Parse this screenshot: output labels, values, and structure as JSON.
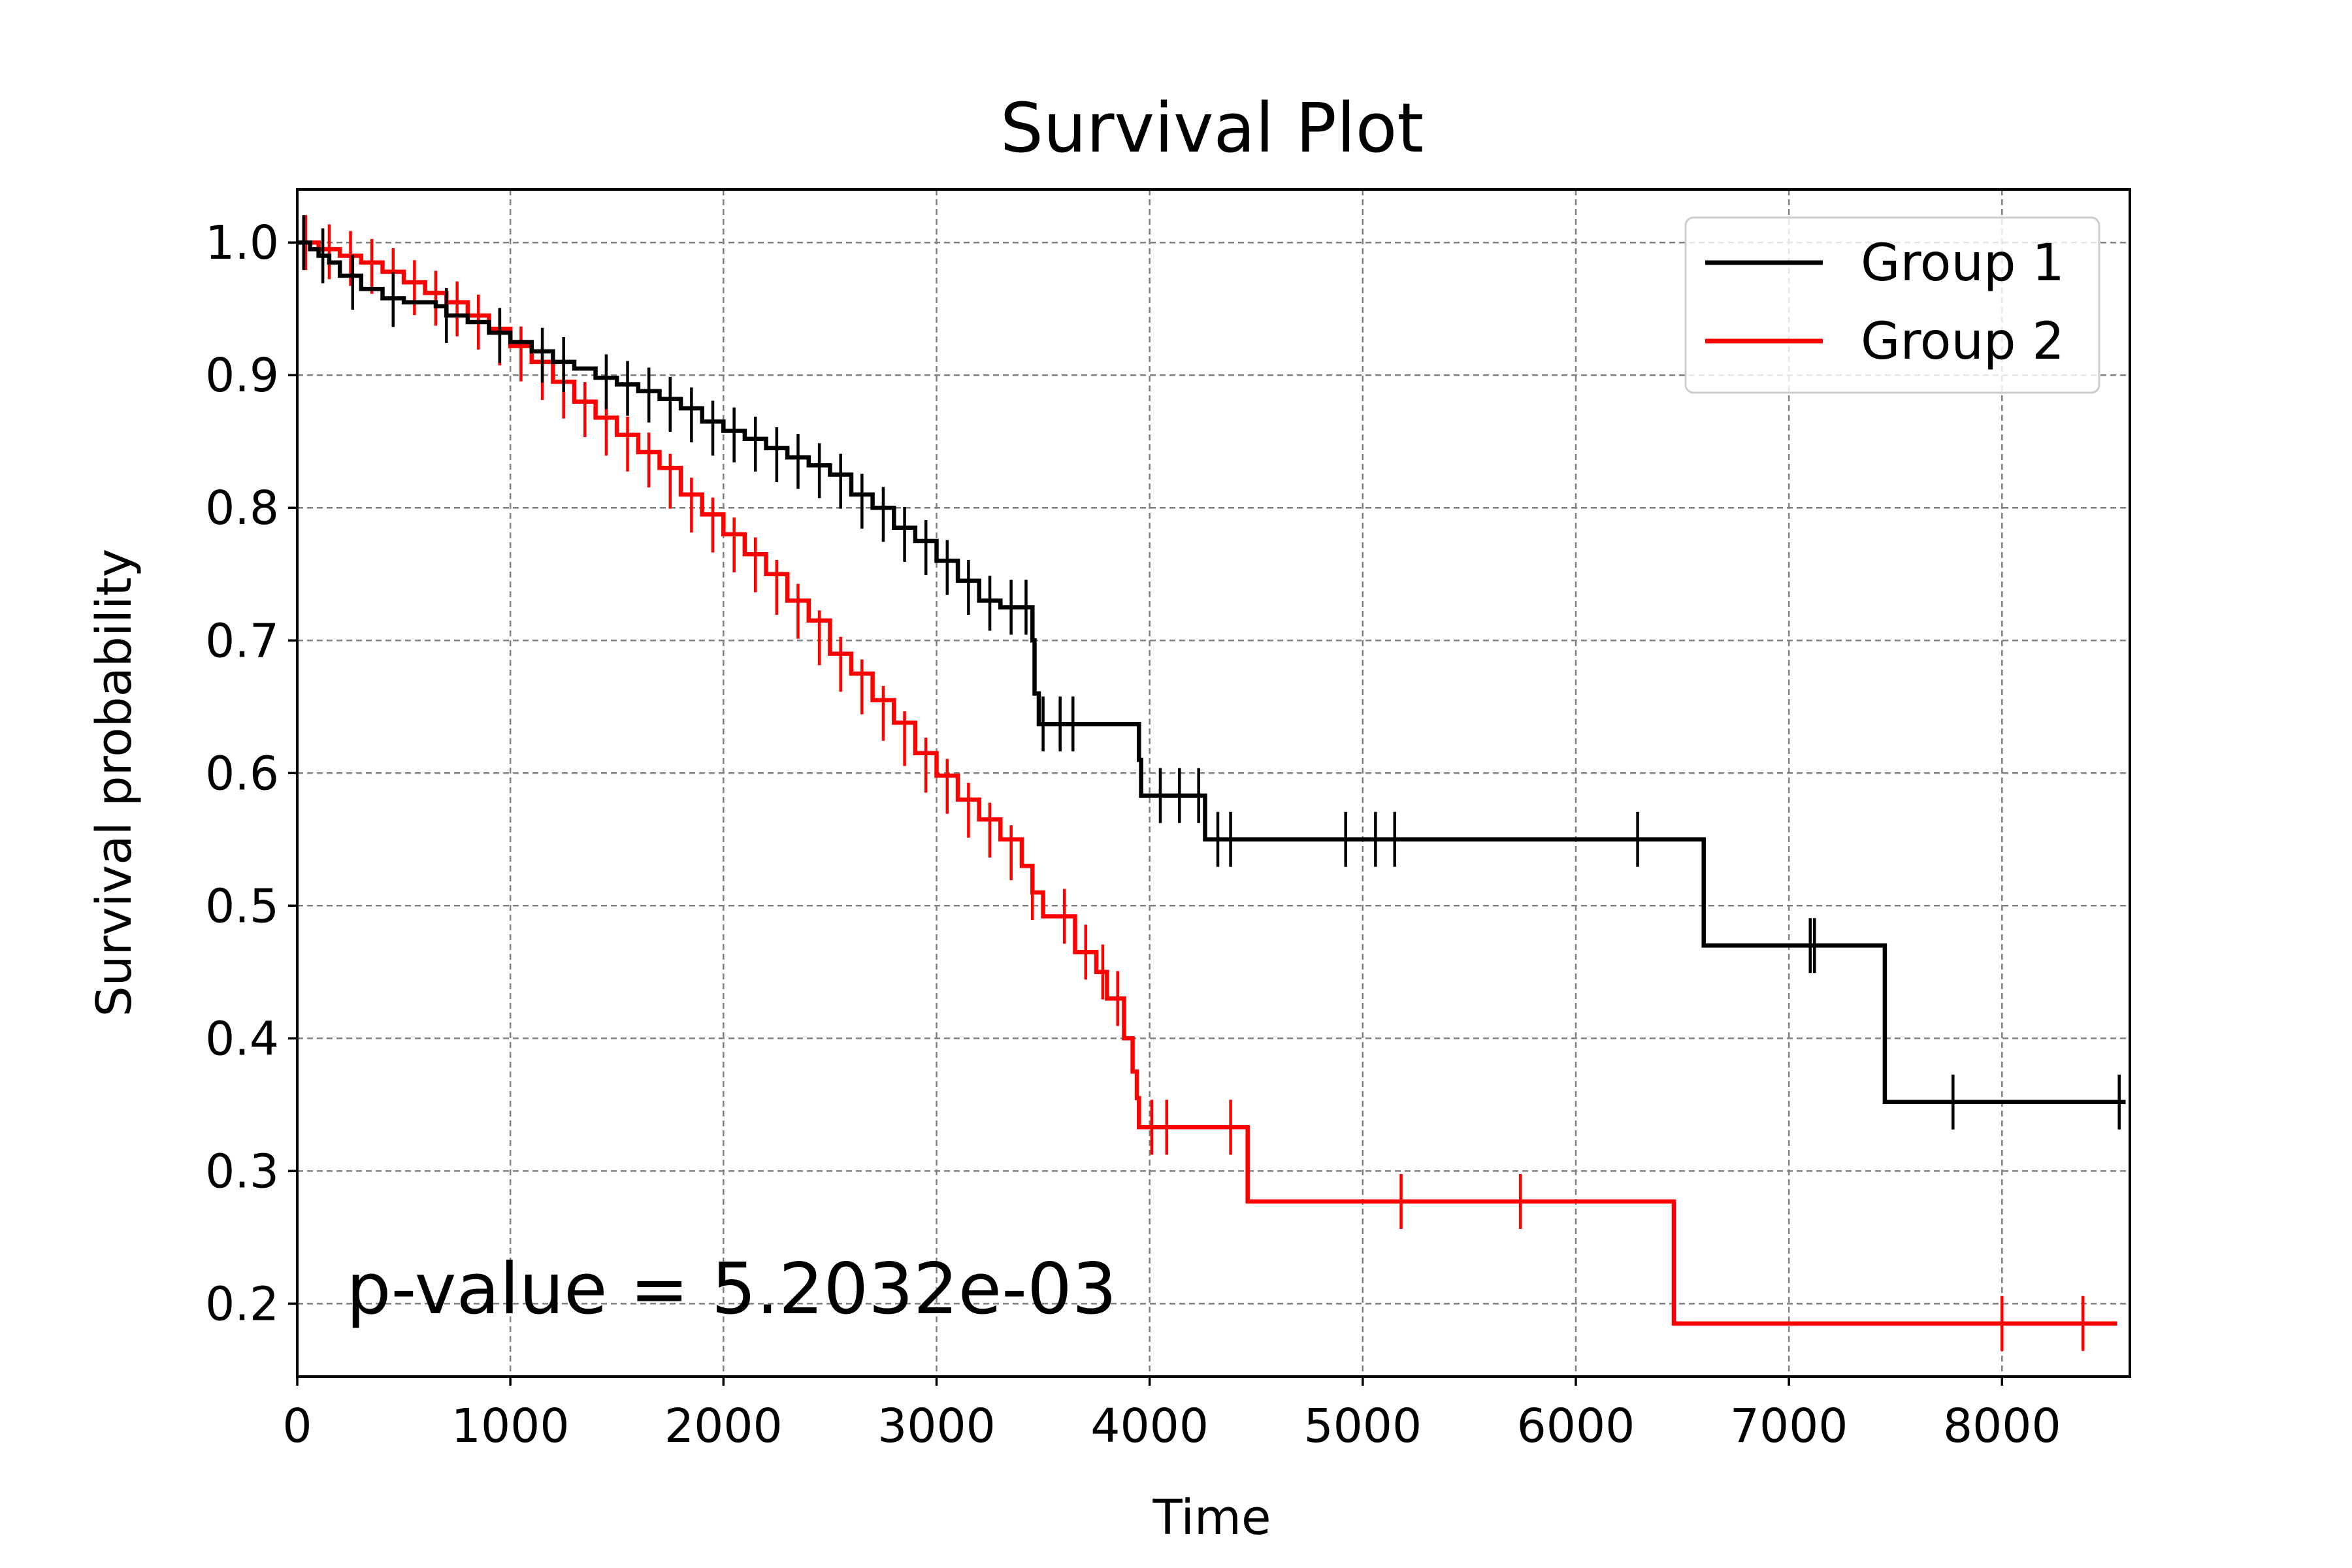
{
  "chart_data": {
    "type": "line",
    "title": "Survival Plot",
    "xlabel": "Time",
    "ylabel": "Survival probability",
    "xlim": [
      0,
      8600
    ],
    "ylim": [
      0.145,
      1.04
    ],
    "xticks": [
      0,
      1000,
      2000,
      3000,
      4000,
      5000,
      6000,
      7000,
      8000
    ],
    "yticks": [
      0.2,
      0.3,
      0.4,
      0.5,
      0.6,
      0.7,
      0.8,
      0.9,
      1.0
    ],
    "xtick_labels": [
      "0",
      "1000",
      "2000",
      "3000",
      "4000",
      "5000",
      "6000",
      "7000",
      "8000"
    ],
    "ytick_labels": [
      "0.2",
      "0.3",
      "0.4",
      "0.5",
      "0.6",
      "0.7",
      "0.8",
      "0.9",
      "1.0"
    ],
    "grid": true,
    "legend_position": "top-right",
    "annotation": "p-value = 5.2032e-03",
    "series": [
      {
        "name": "Group 1",
        "color": "#000000",
        "steps": [
          [
            0,
            1.0
          ],
          [
            60,
            0.995
          ],
          [
            100,
            0.99
          ],
          [
            150,
            0.985
          ],
          [
            200,
            0.975
          ],
          [
            300,
            0.965
          ],
          [
            400,
            0.958
          ],
          [
            500,
            0.955
          ],
          [
            650,
            0.952
          ],
          [
            700,
            0.945
          ],
          [
            800,
            0.94
          ],
          [
            900,
            0.932
          ],
          [
            1000,
            0.925
          ],
          [
            1100,
            0.918
          ],
          [
            1200,
            0.91
          ],
          [
            1300,
            0.905
          ],
          [
            1400,
            0.898
          ],
          [
            1500,
            0.893
          ],
          [
            1600,
            0.888
          ],
          [
            1700,
            0.882
          ],
          [
            1800,
            0.875
          ],
          [
            1900,
            0.865
          ],
          [
            2000,
            0.858
          ],
          [
            2100,
            0.852
          ],
          [
            2200,
            0.845
          ],
          [
            2300,
            0.838
          ],
          [
            2400,
            0.832
          ],
          [
            2500,
            0.825
          ],
          [
            2600,
            0.81
          ],
          [
            2700,
            0.8
          ],
          [
            2800,
            0.785
          ],
          [
            2900,
            0.775
          ],
          [
            3000,
            0.76
          ],
          [
            3100,
            0.745
          ],
          [
            3200,
            0.73
          ],
          [
            3300,
            0.725
          ],
          [
            3450,
            0.7
          ],
          [
            3460,
            0.66
          ],
          [
            3480,
            0.637
          ],
          [
            3950,
            0.61
          ],
          [
            3960,
            0.583
          ],
          [
            4260,
            0.55
          ],
          [
            6600,
            0.47
          ],
          [
            7450,
            0.352
          ],
          [
            8580,
            0.352
          ]
        ],
        "censored": [
          [
            30,
            1.0
          ],
          [
            120,
            0.99
          ],
          [
            260,
            0.97
          ],
          [
            450,
            0.957
          ],
          [
            700,
            0.945
          ],
          [
            950,
            0.93
          ],
          [
            1150,
            0.915
          ],
          [
            1250,
            0.908
          ],
          [
            1450,
            0.895
          ],
          [
            1550,
            0.89
          ],
          [
            1650,
            0.885
          ],
          [
            1750,
            0.878
          ],
          [
            1850,
            0.87
          ],
          [
            1950,
            0.86
          ],
          [
            2050,
            0.855
          ],
          [
            2150,
            0.848
          ],
          [
            2250,
            0.84
          ],
          [
            2350,
            0.835
          ],
          [
            2450,
            0.828
          ],
          [
            2550,
            0.82
          ],
          [
            2650,
            0.805
          ],
          [
            2750,
            0.795
          ],
          [
            2850,
            0.78
          ],
          [
            2950,
            0.77
          ],
          [
            3050,
            0.755
          ],
          [
            3150,
            0.74
          ],
          [
            3250,
            0.728
          ],
          [
            3350,
            0.725
          ],
          [
            3420,
            0.725
          ],
          [
            3500,
            0.637
          ],
          [
            3580,
            0.637
          ],
          [
            3640,
            0.637
          ],
          [
            4050,
            0.583
          ],
          [
            4140,
            0.583
          ],
          [
            4230,
            0.583
          ],
          [
            4320,
            0.55
          ],
          [
            4380,
            0.55
          ],
          [
            4920,
            0.55
          ],
          [
            5060,
            0.55
          ],
          [
            5150,
            0.55
          ],
          [
            6290,
            0.55
          ],
          [
            7100,
            0.47
          ],
          [
            7120,
            0.47
          ],
          [
            7770,
            0.352
          ],
          [
            8550,
            0.352
          ]
        ]
      },
      {
        "name": "Group 2",
        "color": "#ff0000",
        "steps": [
          [
            0,
            1.0
          ],
          [
            100,
            0.995
          ],
          [
            200,
            0.99
          ],
          [
            300,
            0.985
          ],
          [
            400,
            0.978
          ],
          [
            500,
            0.97
          ],
          [
            600,
            0.962
          ],
          [
            700,
            0.955
          ],
          [
            800,
            0.945
          ],
          [
            900,
            0.935
          ],
          [
            1000,
            0.922
          ],
          [
            1100,
            0.91
          ],
          [
            1200,
            0.895
          ],
          [
            1300,
            0.88
          ],
          [
            1400,
            0.868
          ],
          [
            1500,
            0.855
          ],
          [
            1600,
            0.842
          ],
          [
            1700,
            0.83
          ],
          [
            1800,
            0.81
          ],
          [
            1900,
            0.795
          ],
          [
            2000,
            0.78
          ],
          [
            2100,
            0.765
          ],
          [
            2200,
            0.75
          ],
          [
            2300,
            0.73
          ],
          [
            2400,
            0.715
          ],
          [
            2500,
            0.69
          ],
          [
            2600,
            0.675
          ],
          [
            2700,
            0.655
          ],
          [
            2800,
            0.638
          ],
          [
            2900,
            0.615
          ],
          [
            3000,
            0.598
          ],
          [
            3100,
            0.58
          ],
          [
            3200,
            0.565
          ],
          [
            3300,
            0.55
          ],
          [
            3400,
            0.53
          ],
          [
            3450,
            0.51
          ],
          [
            3500,
            0.492
          ],
          [
            3650,
            0.465
          ],
          [
            3750,
            0.45
          ],
          [
            3800,
            0.43
          ],
          [
            3880,
            0.4
          ],
          [
            3920,
            0.375
          ],
          [
            3940,
            0.355
          ],
          [
            3950,
            0.333
          ],
          [
            4460,
            0.277
          ],
          [
            6460,
            0.185
          ],
          [
            8540,
            0.185
          ]
        ],
        "censored": [
          [
            40,
            1.0
          ],
          [
            150,
            0.993
          ],
          [
            250,
            0.988
          ],
          [
            350,
            0.982
          ],
          [
            450,
            0.975
          ],
          [
            550,
            0.966
          ],
          [
            650,
            0.958
          ],
          [
            750,
            0.95
          ],
          [
            850,
            0.94
          ],
          [
            950,
            0.928
          ],
          [
            1050,
            0.916
          ],
          [
            1150,
            0.902
          ],
          [
            1250,
            0.888
          ],
          [
            1350,
            0.874
          ],
          [
            1450,
            0.86
          ],
          [
            1550,
            0.848
          ],
          [
            1650,
            0.836
          ],
          [
            1750,
            0.82
          ],
          [
            1850,
            0.802
          ],
          [
            1950,
            0.787
          ],
          [
            2050,
            0.772
          ],
          [
            2150,
            0.757
          ],
          [
            2250,
            0.74
          ],
          [
            2350,
            0.722
          ],
          [
            2450,
            0.702
          ],
          [
            2550,
            0.682
          ],
          [
            2650,
            0.665
          ],
          [
            2750,
            0.645
          ],
          [
            2850,
            0.626
          ],
          [
            2950,
            0.606
          ],
          [
            3050,
            0.59
          ],
          [
            3150,
            0.572
          ],
          [
            3250,
            0.557
          ],
          [
            3350,
            0.54
          ],
          [
            3450,
            0.51
          ],
          [
            3600,
            0.492
          ],
          [
            3700,
            0.465
          ],
          [
            3780,
            0.45
          ],
          [
            3850,
            0.43
          ],
          [
            4010,
            0.333
          ],
          [
            4080,
            0.333
          ],
          [
            4380,
            0.333
          ],
          [
            5180,
            0.277
          ],
          [
            5740,
            0.277
          ],
          [
            8000,
            0.185
          ],
          [
            8380,
            0.185
          ]
        ]
      }
    ]
  }
}
